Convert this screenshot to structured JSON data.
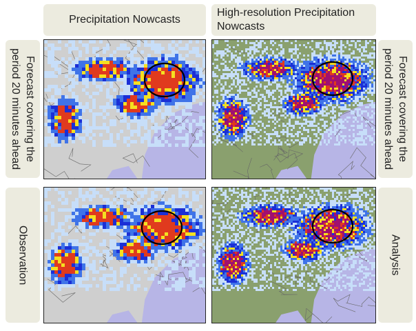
{
  "columns": {
    "left": "Precipitation Nowcasts",
    "right": "High-resolution Precipitation Nowcasts"
  },
  "rows": {
    "top_left": "Forecast covering the period 20 minutes ahead",
    "top_right": "Forecast covering the period 20 minutes ahead",
    "bottom_left": "Observation",
    "bottom_right": "Analysis"
  },
  "colors": {
    "land_standard": "#cfcfcf",
    "land_highres": "#8aa06e",
    "sea": "#b7b5e6",
    "rain_light": "#c7def9",
    "rain_moderate": "#3f73e8",
    "rain_heavy": "#1b2fd6",
    "rain_intense": "#f4e021",
    "rain_severe": "#e03a1e",
    "rain_extreme": "#a01070",
    "highlight_circle": "#000000"
  }
}
